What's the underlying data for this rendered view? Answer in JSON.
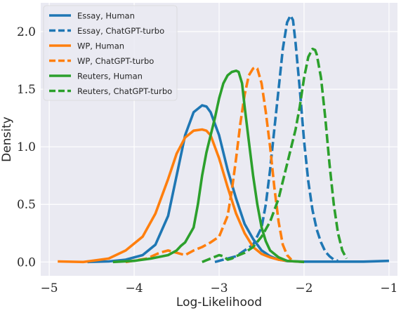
{
  "chart_data": {
    "type": "line",
    "title": "",
    "xlabel": "Log-Likelihood",
    "ylabel": "Density",
    "xlim": [
      -5.1,
      -0.9
    ],
    "ylim": [
      -0.12,
      2.25
    ],
    "xticks": [
      -5,
      -4,
      -3,
      -2,
      -1
    ],
    "xtick_labels": [
      "−5",
      "−4",
      "−3",
      "−2",
      "−1"
    ],
    "yticks": [
      0.0,
      0.5,
      1.0,
      1.5,
      2.0
    ],
    "ytick_labels": [
      "0.0",
      "0.5",
      "1.0",
      "1.5",
      "2.0"
    ],
    "grid": true,
    "background": "#eaeaf2",
    "legend_position": "top-left",
    "series": [
      {
        "name": "Essay, Human",
        "color": "#1f77b4",
        "dash": "solid",
        "x": [
          -4.55,
          -4.3,
          -4.1,
          -3.9,
          -3.75,
          -3.6,
          -3.5,
          -3.4,
          -3.3,
          -3.2,
          -3.15,
          -3.1,
          -3.0,
          -2.9,
          -2.8,
          -2.7,
          -2.6,
          -2.5,
          -2.4,
          -2.3,
          -2.2,
          -2.0,
          -1.6,
          -1.3,
          -1.0
        ],
        "y": [
          0.0,
          0.005,
          0.02,
          0.06,
          0.15,
          0.4,
          0.75,
          1.1,
          1.3,
          1.36,
          1.35,
          1.3,
          1.1,
          0.8,
          0.55,
          0.33,
          0.2,
          0.1,
          0.05,
          0.02,
          0.008,
          0.003,
          0.003,
          0.003,
          0.01
        ]
      },
      {
        "name": "Essay, ChatGPT-turbo",
        "color": "#1f77b4",
        "dash": "dashed",
        "x": [
          -3.05,
          -2.8,
          -2.6,
          -2.5,
          -2.45,
          -2.4,
          -2.35,
          -2.3,
          -2.25,
          -2.2,
          -2.16,
          -2.13,
          -2.1,
          -2.05,
          -2.0,
          -1.95,
          -1.9,
          -1.85,
          -1.8,
          -1.75,
          -1.7,
          -1.65,
          -1.6
        ],
        "y": [
          0.0,
          0.05,
          0.15,
          0.3,
          0.5,
          0.8,
          1.15,
          1.5,
          1.85,
          2.08,
          2.14,
          2.1,
          1.9,
          1.5,
          1.05,
          0.7,
          0.45,
          0.28,
          0.17,
          0.09,
          0.05,
          0.02,
          0.01
        ]
      },
      {
        "name": "WP, Human",
        "color": "#ff7f0e",
        "dash": "solid",
        "x": [
          -4.9,
          -4.6,
          -4.3,
          -4.1,
          -3.9,
          -3.75,
          -3.6,
          -3.5,
          -3.4,
          -3.3,
          -3.2,
          -3.15,
          -3.1,
          -3.0,
          -2.9,
          -2.8,
          -2.7,
          -2.6,
          -2.5,
          -2.4,
          -2.3,
          -2.2,
          -2.1,
          -2.0
        ],
        "y": [
          0.005,
          0.0,
          0.03,
          0.1,
          0.22,
          0.42,
          0.72,
          0.94,
          1.08,
          1.14,
          1.15,
          1.14,
          1.1,
          0.9,
          0.65,
          0.42,
          0.25,
          0.13,
          0.07,
          0.04,
          0.02,
          0.01,
          0.005,
          0.0
        ]
      },
      {
        "name": "WP, ChatGPT-turbo",
        "color": "#ff7f0e",
        "dash": "dashed",
        "x": [
          -4.1,
          -3.85,
          -3.7,
          -3.6,
          -3.5,
          -3.4,
          -3.3,
          -3.2,
          -3.1,
          -3.0,
          -2.9,
          -2.85,
          -2.8,
          -2.75,
          -2.7,
          -2.65,
          -2.6,
          -2.57,
          -2.55,
          -2.5,
          -2.45,
          -2.4,
          -2.35,
          -2.3,
          -2.25,
          -2.2,
          -2.15
        ],
        "y": [
          0.0,
          0.03,
          0.08,
          0.1,
          0.08,
          0.06,
          0.1,
          0.13,
          0.17,
          0.22,
          0.4,
          0.62,
          0.9,
          1.2,
          1.45,
          1.62,
          1.68,
          1.69,
          1.68,
          1.55,
          1.3,
          1.0,
          0.65,
          0.35,
          0.15,
          0.06,
          0.02
        ]
      },
      {
        "name": "Reuters, Human",
        "color": "#2ca02c",
        "dash": "solid",
        "x": [
          -4.25,
          -4.0,
          -3.8,
          -3.6,
          -3.5,
          -3.45,
          -3.4,
          -3.3,
          -3.25,
          -3.2,
          -3.15,
          -3.1,
          -3.05,
          -3.0,
          -2.95,
          -2.9,
          -2.85,
          -2.8,
          -2.77,
          -2.73,
          -2.7,
          -2.65,
          -2.6,
          -2.55,
          -2.5,
          -2.45,
          -2.4,
          -2.3,
          -2.2,
          -2.1,
          -2.0
        ],
        "y": [
          0.0,
          0.01,
          0.03,
          0.06,
          0.1,
          0.14,
          0.17,
          0.3,
          0.5,
          0.75,
          0.95,
          1.1,
          1.25,
          1.42,
          1.55,
          1.62,
          1.65,
          1.66,
          1.65,
          1.55,
          1.35,
          1.05,
          0.75,
          0.5,
          0.3,
          0.18,
          0.1,
          0.04,
          0.01,
          0.005,
          0.0
        ]
      },
      {
        "name": "Reuters, ChatGPT-turbo",
        "color": "#2ca02c",
        "dash": "dashed",
        "x": [
          -3.2,
          -3.1,
          -3.0,
          -2.95,
          -2.9,
          -2.85,
          -2.8,
          -2.7,
          -2.6,
          -2.5,
          -2.4,
          -2.3,
          -2.25,
          -2.2,
          -2.15,
          -2.1,
          -2.05,
          -2.0,
          -1.95,
          -1.9,
          -1.87,
          -1.85,
          -1.8,
          -1.75,
          -1.7,
          -1.65,
          -1.6,
          -1.55,
          -1.5
        ],
        "y": [
          0.0,
          0.03,
          0.06,
          0.05,
          0.02,
          0.03,
          0.05,
          0.08,
          0.13,
          0.22,
          0.35,
          0.55,
          0.7,
          0.85,
          1.0,
          1.15,
          1.35,
          1.6,
          1.78,
          1.85,
          1.84,
          1.8,
          1.6,
          1.25,
          0.85,
          0.5,
          0.25,
          0.1,
          0.03
        ]
      }
    ]
  }
}
